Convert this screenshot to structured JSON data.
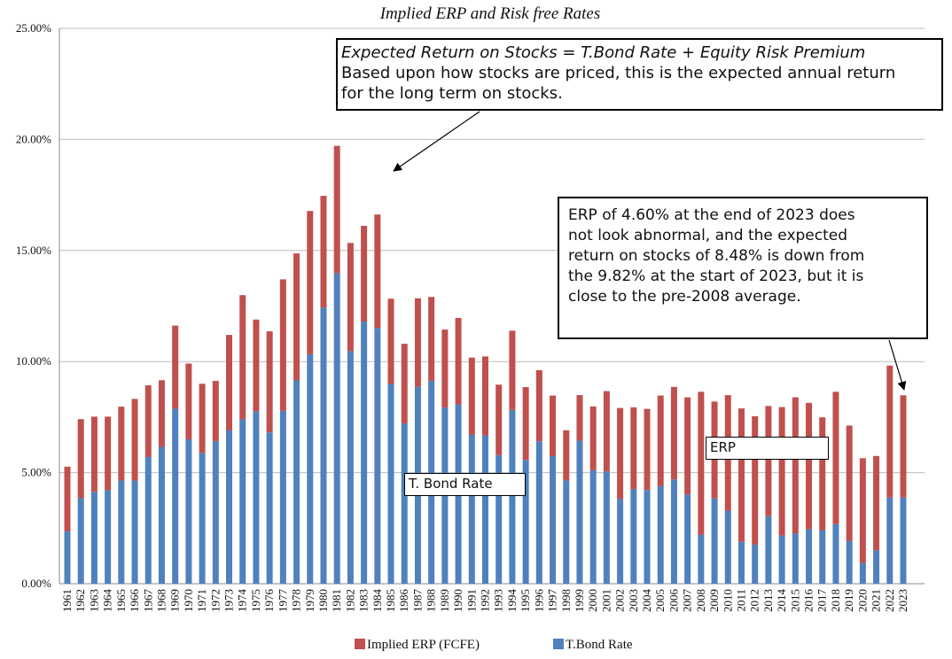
{
  "chart_data": {
    "type": "bar",
    "stacked": true,
    "title": "Implied ERP and Risk free Rates",
    "ylim": [
      0,
      25
    ],
    "yticks": [
      "0.00%",
      "5.00%",
      "10.00%",
      "15.00%",
      "20.00%",
      "25.00%"
    ],
    "grid": true,
    "legend_position": "bottom",
    "categories": [
      "1961",
      "1962",
      "1963",
      "1964",
      "1965",
      "1966",
      "1967",
      "1968",
      "1969",
      "1970",
      "1971",
      "1972",
      "1973",
      "1974",
      "1975",
      "1976",
      "1977",
      "1978",
      "1979",
      "1980",
      "1981",
      "1982",
      "1983",
      "1984",
      "1985",
      "1986",
      "1987",
      "1988",
      "1989",
      "1990",
      "1991",
      "1992",
      "1993",
      "1994",
      "1995",
      "1996",
      "1997",
      "1998",
      "1999",
      "2000",
      "2001",
      "2002",
      "2003",
      "2004",
      "2005",
      "2006",
      "2007",
      "2008",
      "2009",
      "2010",
      "2011",
      "2012",
      "2013",
      "2014",
      "2015",
      "2016",
      "2017",
      "2018",
      "2019",
      "2020",
      "2021",
      "2022",
      "2023"
    ],
    "series": [
      {
        "name": "T.Bond Rate",
        "color": "#4F81BD",
        "values": [
          2.35,
          3.85,
          4.14,
          4.21,
          4.65,
          4.64,
          5.7,
          6.16,
          7.88,
          6.5,
          5.89,
          6.41,
          6.9,
          7.4,
          7.76,
          6.81,
          7.78,
          9.15,
          10.33,
          12.43,
          13.98,
          10.47,
          11.8,
          11.51,
          8.99,
          7.22,
          8.86,
          9.14,
          7.93,
          8.07,
          6.7,
          6.68,
          5.79,
          7.82,
          5.57,
          6.41,
          5.74,
          4.65,
          6.44,
          5.11,
          5.05,
          3.81,
          4.25,
          4.22,
          4.39,
          4.7,
          4.02,
          2.21,
          3.84,
          3.29,
          1.88,
          1.76,
          3.04,
          2.17,
          2.27,
          2.45,
          2.41,
          2.68,
          1.92,
          0.93,
          1.51,
          3.88,
          3.88
        ]
      },
      {
        "name": "Implied ERP (FCFE)",
        "color": "#C0504D",
        "values": [
          2.92,
          3.56,
          3.38,
          3.31,
          3.32,
          3.68,
          3.23,
          3.0,
          3.74,
          3.41,
          3.11,
          2.72,
          4.3,
          5.59,
          4.13,
          4.55,
          5.92,
          5.72,
          6.45,
          5.03,
          5.73,
          4.87,
          4.31,
          5.11,
          3.84,
          3.58,
          3.99,
          3.77,
          3.51,
          3.89,
          3.48,
          3.55,
          3.17,
          3.57,
          3.28,
          3.2,
          2.73,
          2.26,
          2.05,
          2.87,
          3.62,
          4.1,
          3.69,
          3.65,
          4.08,
          4.16,
          4.37,
          6.43,
          4.36,
          5.2,
          6.01,
          5.78,
          4.96,
          5.78,
          6.12,
          5.69,
          5.08,
          5.96,
          5.2,
          4.72,
          4.24,
          5.94,
          4.6
        ]
      }
    ],
    "annotations": {
      "main_title": "Expected Return on Stocks = T.Bond Rate + Equity Risk Premium",
      "main_body_line1": "Based upon how stocks are priced, this is the expected annual return",
      "main_body_line2": "for the long term on stocks.",
      "note_line1": "ERP of 4.60% at the end of 2023 does",
      "note_line2": "not look abnormal, and the expected",
      "note_line3": "return on stocks of 8.48% is down from",
      "note_line4": "the 9.82% at the start of 2023, but it is",
      "note_line5": "close to the pre-2008 average.",
      "erp_label": "ERP",
      "tbond_label": "T. Bond Rate"
    }
  }
}
